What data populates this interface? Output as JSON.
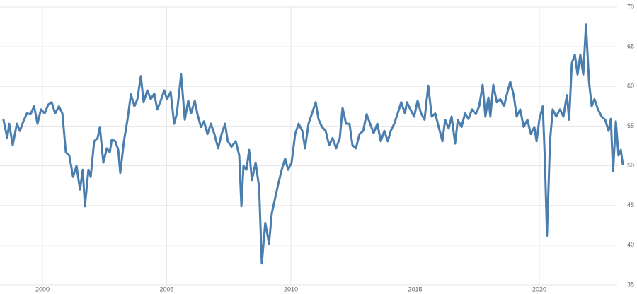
{
  "chart_data": {
    "type": "line",
    "x": [
      1998.43,
      1998.58,
      1998.66,
      1998.8,
      1998.97,
      1999.09,
      1999.23,
      1999.37,
      1999.52,
      1999.66,
      1999.8,
      1999.94,
      2000.09,
      2000.23,
      2000.37,
      2000.51,
      2000.66,
      2000.8,
      2000.94,
      2001.08,
      2001.23,
      2001.37,
      2001.51,
      2001.62,
      2001.71,
      2001.85,
      2001.94,
      2002.08,
      2002.22,
      2002.31,
      2002.45,
      2002.59,
      2002.71,
      2002.79,
      2002.93,
      2003.05,
      2003.13,
      2003.28,
      2003.42,
      2003.56,
      2003.7,
      2003.82,
      2003.96,
      2004.07,
      2004.22,
      2004.36,
      2004.5,
      2004.62,
      2004.76,
      2004.9,
      2005.01,
      2005.16,
      2005.3,
      2005.41,
      2005.58,
      2005.73,
      2005.87,
      2005.98,
      2006.13,
      2006.24,
      2006.38,
      2006.5,
      2006.64,
      2006.78,
      2006.92,
      2007.07,
      2007.21,
      2007.35,
      2007.46,
      2007.61,
      2007.78,
      2007.92,
      2008.01,
      2008.09,
      2008.21,
      2008.32,
      2008.43,
      2008.58,
      2008.72,
      2008.83,
      2008.97,
      2009.12,
      2009.23,
      2009.37,
      2009.49,
      2009.63,
      2009.77,
      2009.89,
      2010.03,
      2010.17,
      2010.31,
      2010.46,
      2010.57,
      2010.71,
      2010.85,
      2011.0,
      2011.11,
      2011.25,
      2011.4,
      2011.54,
      2011.68,
      2011.82,
      2011.97,
      2012.08,
      2012.22,
      2012.36,
      2012.48,
      2012.62,
      2012.76,
      2012.91,
      2013.05,
      2013.19,
      2013.33,
      2013.48,
      2013.62,
      2013.76,
      2013.9,
      2014.02,
      2014.16,
      2014.3,
      2014.44,
      2014.59,
      2014.67,
      2014.81,
      2014.96,
      2015.1,
      2015.24,
      2015.38,
      2015.53,
      2015.67,
      2015.81,
      2015.95,
      2016.1,
      2016.21,
      2016.35,
      2016.47,
      2016.61,
      2016.72,
      2016.87,
      2017.01,
      2017.15,
      2017.29,
      2017.44,
      2017.58,
      2017.72,
      2017.83,
      2017.95,
      2018.03,
      2018.15,
      2018.29,
      2018.43,
      2018.58,
      2018.72,
      2018.83,
      2018.97,
      2019.09,
      2019.23,
      2019.37,
      2019.52,
      2019.66,
      2019.8,
      2019.89,
      2020.0,
      2020.14,
      2020.23,
      2020.31,
      2020.43,
      2020.54,
      2020.68,
      2020.83,
      2020.97,
      2021.11,
      2021.2,
      2021.31,
      2021.43,
      2021.54,
      2021.65,
      2021.77,
      2021.88,
      2022.0,
      2022.11,
      2022.22,
      2022.36,
      2022.51,
      2022.65,
      2022.79,
      2022.88,
      2022.97,
      2023.08,
      2023.19,
      2023.28,
      2023.36
    ],
    "series": [
      {
        "color": "#4a7eae",
        "values": [
          55.8,
          53.5,
          55.3,
          52.6,
          55.3,
          54.4,
          55.6,
          56.6,
          56.5,
          57.5,
          55.3,
          57.1,
          56.6,
          57.7,
          58.0,
          56.6,
          57.5,
          56.6,
          51.7,
          51.3,
          48.6,
          50.0,
          47.0,
          49.5,
          44.9,
          49.5,
          48.6,
          53.1,
          53.5,
          54.9,
          50.4,
          52.2,
          51.7,
          53.3,
          53.1,
          52.0,
          49.1,
          53.1,
          55.8,
          59.0,
          57.5,
          58.4,
          61.3,
          58.0,
          59.5,
          58.4,
          59.1,
          57.1,
          58.2,
          59.5,
          58.4,
          59.3,
          55.3,
          56.6,
          61.5,
          55.8,
          58.2,
          56.6,
          58.2,
          56.5,
          54.9,
          55.6,
          54.0,
          55.3,
          54.0,
          52.2,
          54.0,
          55.3,
          53.1,
          52.4,
          53.1,
          51.3,
          44.9,
          50.0,
          49.5,
          52.0,
          48.2,
          50.4,
          47.3,
          37.7,
          42.8,
          40.2,
          44.0,
          46.0,
          47.7,
          49.5,
          50.9,
          49.5,
          50.4,
          54.0,
          55.3,
          54.4,
          52.2,
          55.3,
          56.6,
          58.0,
          55.9,
          54.9,
          54.4,
          52.6,
          53.5,
          52.2,
          53.5,
          57.3,
          55.3,
          55.3,
          52.6,
          52.2,
          54.0,
          54.4,
          56.5,
          55.3,
          54.1,
          55.3,
          53.1,
          54.4,
          53.1,
          54.4,
          55.3,
          56.6,
          58.0,
          56.6,
          58.0,
          57.1,
          56.2,
          58.2,
          56.6,
          55.8,
          60.1,
          56.2,
          56.6,
          54.9,
          53.1,
          55.8,
          54.7,
          56.2,
          52.8,
          55.8,
          54.9,
          56.6,
          55.9,
          57.1,
          56.5,
          57.5,
          60.2,
          56.2,
          58.6,
          56.2,
          60.2,
          58.0,
          58.4,
          57.5,
          59.3,
          60.6,
          58.9,
          56.2,
          57.1,
          54.9,
          55.8,
          54.0,
          54.9,
          53.1,
          55.8,
          57.5,
          50.4,
          41.2,
          53.1,
          57.1,
          56.2,
          57.1,
          56.2,
          58.9,
          55.8,
          62.9,
          64.0,
          61.5,
          64.0,
          61.5,
          67.8,
          60.6,
          57.5,
          58.4,
          57.1,
          56.2,
          55.8,
          54.4,
          55.9,
          49.3,
          55.6,
          51.3,
          52.0,
          50.2
        ]
      }
    ],
    "xlim": [
      1998.29,
      2023.42
    ],
    "xticks": [
      2000,
      2005,
      2010,
      2015,
      2020
    ],
    "ylim": [
      35,
      70
    ],
    "yticks": [
      35,
      40,
      45,
      50,
      55,
      60,
      65,
      70
    ],
    "grid": true
  }
}
